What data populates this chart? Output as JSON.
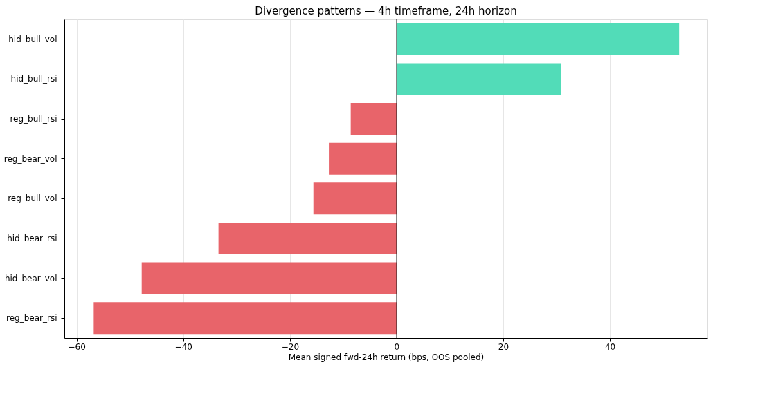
{
  "chart_data": {
    "type": "bar",
    "orientation": "horizontal",
    "title": "Divergence patterns — 4h timeframe, 24h horizon",
    "xlabel": "Mean signed fwd-24h return (bps, OOS pooled)",
    "categories": [
      "hid_bull_vol",
      "hid_bull_rsi",
      "reg_bull_rsi",
      "reg_bear_vol",
      "reg_bull_vol",
      "hid_bear_rsi",
      "hid_bear_vol",
      "reg_bear_rsi"
    ],
    "values": [
      53.0,
      30.8,
      -8.6,
      -12.7,
      -15.6,
      -33.4,
      -47.8,
      -56.8
    ],
    "colors": [
      "#52dcb8",
      "#52dcb8",
      "#e8646a",
      "#e8646a",
      "#e8646a",
      "#e8646a",
      "#e8646a",
      "#e8646a"
    ],
    "xlim": [
      -62.3,
      58.3
    ],
    "xticks": [
      -60,
      -40,
      -20,
      0,
      20,
      40
    ],
    "grid": "x",
    "ref_lines": [
      {
        "axis": "x",
        "value": 0,
        "color": "#000000"
      }
    ]
  }
}
